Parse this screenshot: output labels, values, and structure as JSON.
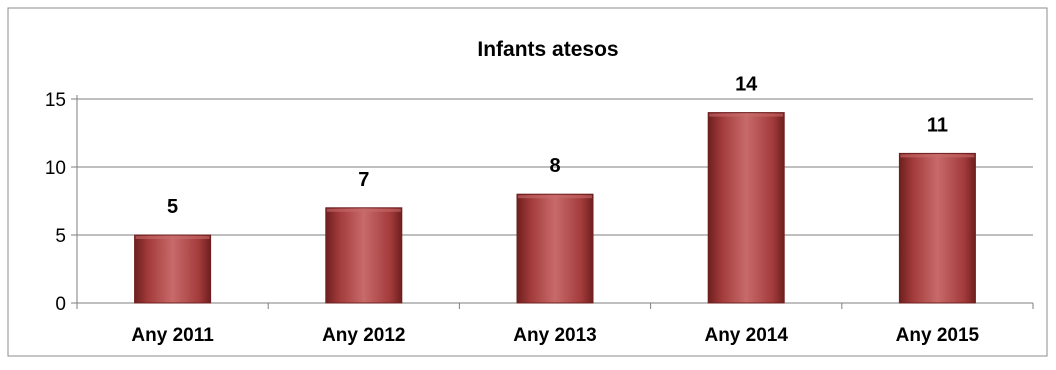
{
  "chart_data": {
    "type": "bar",
    "title": "Infants atesos",
    "xlabel": "",
    "ylabel": "",
    "categories": [
      "Any 2011",
      "Any 2012",
      "Any 2013",
      "Any 2014",
      "Any 2015"
    ],
    "values": [
      5,
      7,
      8,
      14,
      11
    ],
    "yticks": [
      0,
      5,
      10,
      15
    ],
    "ylim": [
      0,
      15
    ],
    "grid": true,
    "legend": "none",
    "data_labels": true,
    "colors": {
      "bar_fill": "#a33b3b",
      "bar_light": "#c86a6a",
      "bar_dark": "#6e1f1f",
      "grid": "#7f7f7f",
      "axis": "#7f7f7f",
      "text": "#000000",
      "border": "#8c8c8c"
    }
  }
}
